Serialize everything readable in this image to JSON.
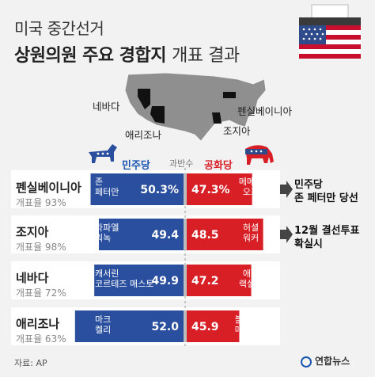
{
  "header": {
    "kicker": "미국 중간선거",
    "title_bold": "상원의원 주요 경합지",
    "title_light": "개표 결과"
  },
  "map": {
    "labels": {
      "nevada": "네바다",
      "arizona": "애리조나",
      "pennsylvania": "펜실베이니아",
      "georgia": "조지아"
    }
  },
  "legend": {
    "dem": "민주당",
    "rep": "공화당",
    "majority": "과반수"
  },
  "colors": {
    "dem": "#2a4f9f",
    "rep": "#d81f26",
    "background": "#f2f2f2",
    "flag_blue": "#2f4b8c"
  },
  "chart_data": {
    "type": "bar",
    "title": "상원의원 주요 경합지 개표 결과",
    "categories": [
      "펜실베이니아",
      "조지아",
      "네바다",
      "애리조나"
    ],
    "reported": [
      "개표율 93%",
      "개표율 98%",
      "개표율 72%",
      "개표율 63%"
    ],
    "series": [
      {
        "name": "민주당",
        "candidates": [
          [
            "존",
            "페터만"
          ],
          [
            "라파엘",
            "워녹"
          ],
          [
            "캐서린",
            "코르테즈 매스토"
          ],
          [
            "마크",
            "켈리"
          ]
        ],
        "values": [
          50.3,
          49.4,
          49.9,
          52.0
        ],
        "labels": [
          "50.3%",
          "49.4",
          "49.9",
          "52.0"
        ]
      },
      {
        "name": "공화당",
        "candidates": [
          [
            "메메트",
            "오즈"
          ],
          [
            "허셜",
            "워커"
          ],
          [
            "애덤",
            "랙설트"
          ],
          [
            "블레이크",
            "매스터스"
          ]
        ],
        "values": [
          47.3,
          48.5,
          47.2,
          45.9
        ],
        "labels": [
          "47.3%",
          "48.5",
          "47.2",
          "45.9"
        ]
      }
    ],
    "results": [
      [
        "민주당",
        "존 페터만 당선"
      ],
      [
        "12월 결선투표",
        "확실시"
      ],
      null,
      null
    ],
    "majority_line": 50
  },
  "footer": {
    "source": "자료: AP",
    "brand": "연합뉴스"
  }
}
